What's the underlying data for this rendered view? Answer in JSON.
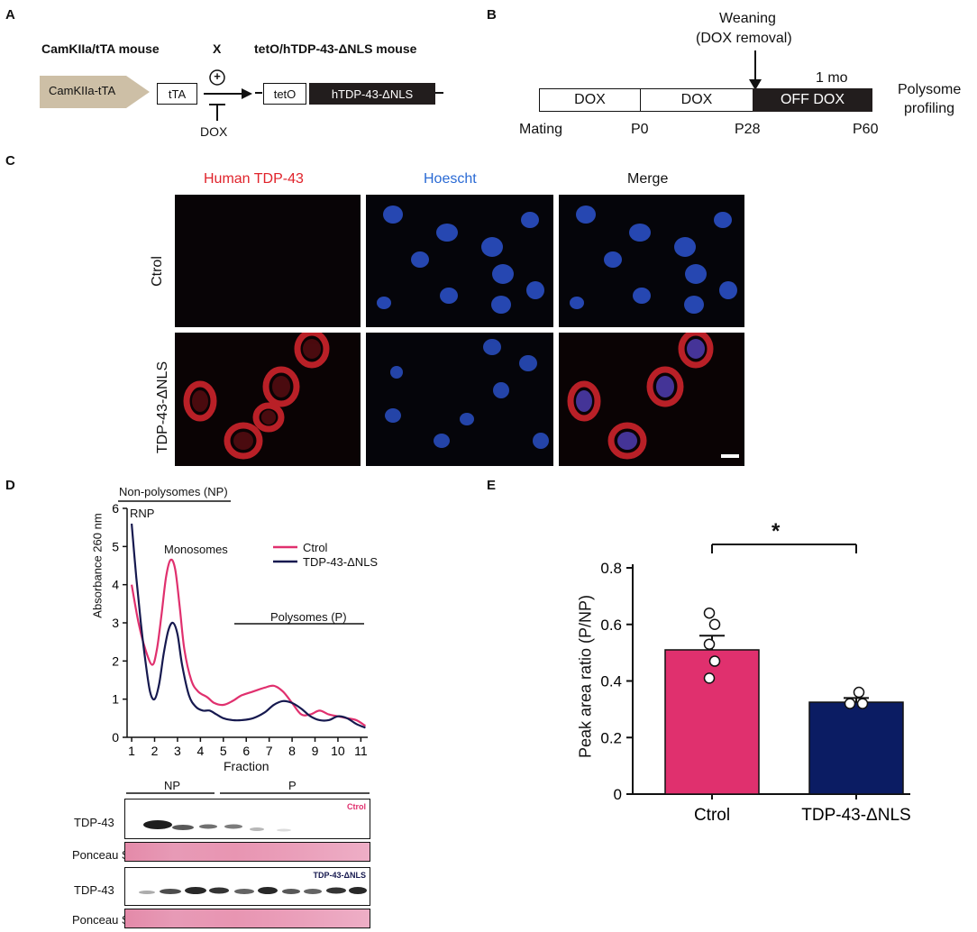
{
  "panels": {
    "A": "A",
    "B": "B",
    "C": "C",
    "D": "D",
    "E": "E"
  },
  "panelA": {
    "mouse1": "CamKIIa/tTA mouse",
    "cross": "X",
    "mouse2": "tetO/hTDP-43-ΔNLS mouse",
    "promoter": "CamKIIa-tTA",
    "tta": "tTA",
    "plus": "+",
    "tetO": "tetO",
    "gene": "hTDP-43-ΔNLS",
    "dox": "DOX"
  },
  "panelB": {
    "weaning": "Weaning",
    "dox_removal": "(DOX removal)",
    "duration": "1 mo",
    "seg1": "DOX",
    "seg2": "DOX",
    "seg3": "OFF DOX",
    "polysome1": "Polysome",
    "polysome2": "profiling",
    "t_mating": "Mating",
    "t_p0": "P0",
    "t_p28": "P28",
    "t_p60": "P60"
  },
  "panelC": {
    "col_red": "Human TDP-43",
    "col_blue": "Hoescht",
    "col_merge": "Merge",
    "row_ctrl": "Ctrol",
    "row_tdp": "TDP-43-ΔNLS",
    "colors": {
      "red": "#e0232b",
      "blue": "#2a6ad4"
    }
  },
  "panelD": {
    "bracket_np": "Non-polysomes (NP)",
    "rnp": "RNP",
    "monosomes": "Monosomes",
    "polysomes": "Polysomes (P)",
    "legend_ctrl": "Ctrol",
    "legend_tdp": "TDP-43-ΔNLS",
    "ylabel": "Absorbance 260 nm",
    "xlabel": "Fraction",
    "blot_np": "NP",
    "blot_p": "P",
    "tdp43_1": "TDP-43",
    "ponceau_1": "Ponceau S",
    "tdp43_2": "TDP-43",
    "ponceau_2": "Ponceau S",
    "blot_tag_ctrl": "Ctrol",
    "blot_tag_tdp": "TDP-43-ΔNLS"
  },
  "panelE": {
    "significance": "*"
  },
  "chart_data": [
    {
      "type": "line",
      "xlabel": "Fraction",
      "ylabel": "Absorbance 260 nm",
      "xlim": [
        0.8,
        11.3
      ],
      "ylim": [
        0,
        6
      ],
      "x_ticks": [
        1,
        2,
        3,
        4,
        5,
        6,
        7,
        8,
        9,
        10,
        11
      ],
      "y_ticks": [
        0,
        1,
        2,
        3,
        4,
        5,
        6
      ],
      "legend_position": "top-right",
      "series": [
        {
          "name": "Ctrol",
          "color": "#e0306e",
          "x": [
            1.0,
            1.3,
            1.6,
            1.9,
            2.1,
            2.3,
            2.5,
            2.7,
            2.9,
            3.1,
            3.3,
            3.6,
            3.9,
            4.3,
            4.6,
            5.0,
            5.4,
            5.8,
            6.3,
            6.8,
            7.2,
            7.6,
            8.0,
            8.4,
            8.8,
            9.2,
            9.6,
            10.0,
            10.4,
            10.8,
            11.2
          ],
          "y": [
            4.0,
            3.0,
            2.3,
            1.9,
            2.3,
            3.2,
            4.2,
            4.65,
            4.4,
            3.4,
            2.3,
            1.5,
            1.2,
            1.05,
            0.9,
            0.85,
            0.95,
            1.1,
            1.2,
            1.3,
            1.35,
            1.2,
            0.9,
            0.6,
            0.6,
            0.7,
            0.6,
            0.55,
            0.5,
            0.45,
            0.3
          ]
        },
        {
          "name": "TDP-43-ΔNLS",
          "color": "#16194f",
          "x": [
            1.0,
            1.2,
            1.4,
            1.6,
            1.8,
            2.0,
            2.2,
            2.4,
            2.6,
            2.8,
            3.0,
            3.2,
            3.5,
            3.8,
            4.1,
            4.4,
            4.7,
            5.0,
            5.4,
            5.8,
            6.3,
            6.8,
            7.2,
            7.6,
            8.0,
            8.4,
            8.8,
            9.2,
            9.6,
            10.0,
            10.4,
            10.8,
            11.2
          ],
          "y": [
            5.6,
            4.2,
            3.0,
            2.0,
            1.2,
            1.0,
            1.4,
            2.2,
            2.8,
            3.0,
            2.7,
            1.9,
            1.1,
            0.8,
            0.7,
            0.7,
            0.6,
            0.5,
            0.45,
            0.45,
            0.5,
            0.65,
            0.85,
            0.95,
            0.9,
            0.75,
            0.55,
            0.45,
            0.45,
            0.55,
            0.5,
            0.35,
            0.25
          ]
        }
      ]
    },
    {
      "type": "bar",
      "ylabel": "Peak area ratio (P/NP)",
      "categories": [
        "Ctrol",
        "TDP-43-ΔNLS"
      ],
      "values": [
        0.51,
        0.325
      ],
      "errors": [
        0.05,
        0.015
      ],
      "points": [
        [
          0.64,
          0.6,
          0.53,
          0.47,
          0.41
        ],
        [
          0.36,
          0.32,
          0.32
        ]
      ],
      "colors": [
        "#e0306e",
        "#0b1c63"
      ],
      "ylim": [
        0,
        0.8
      ],
      "y_ticks": [
        0,
        0.2,
        0.4,
        0.6,
        0.8
      ],
      "significance": "*"
    }
  ]
}
